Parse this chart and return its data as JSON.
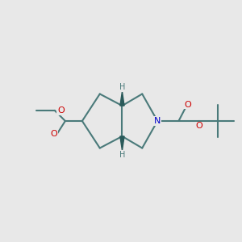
{
  "bg_color": "#e8e8e8",
  "bond_color": "#4a7a7a",
  "bond_width": 1.5,
  "wedge_color": "#2a5a5a",
  "N_color": "#0000cc",
  "O_color": "#cc0000",
  "H_color": "#4a7a7a",
  "figsize": [
    3.0,
    3.0
  ],
  "dpi": 100,
  "xlim": [
    0,
    10
  ],
  "ylim": [
    0,
    10
  ]
}
